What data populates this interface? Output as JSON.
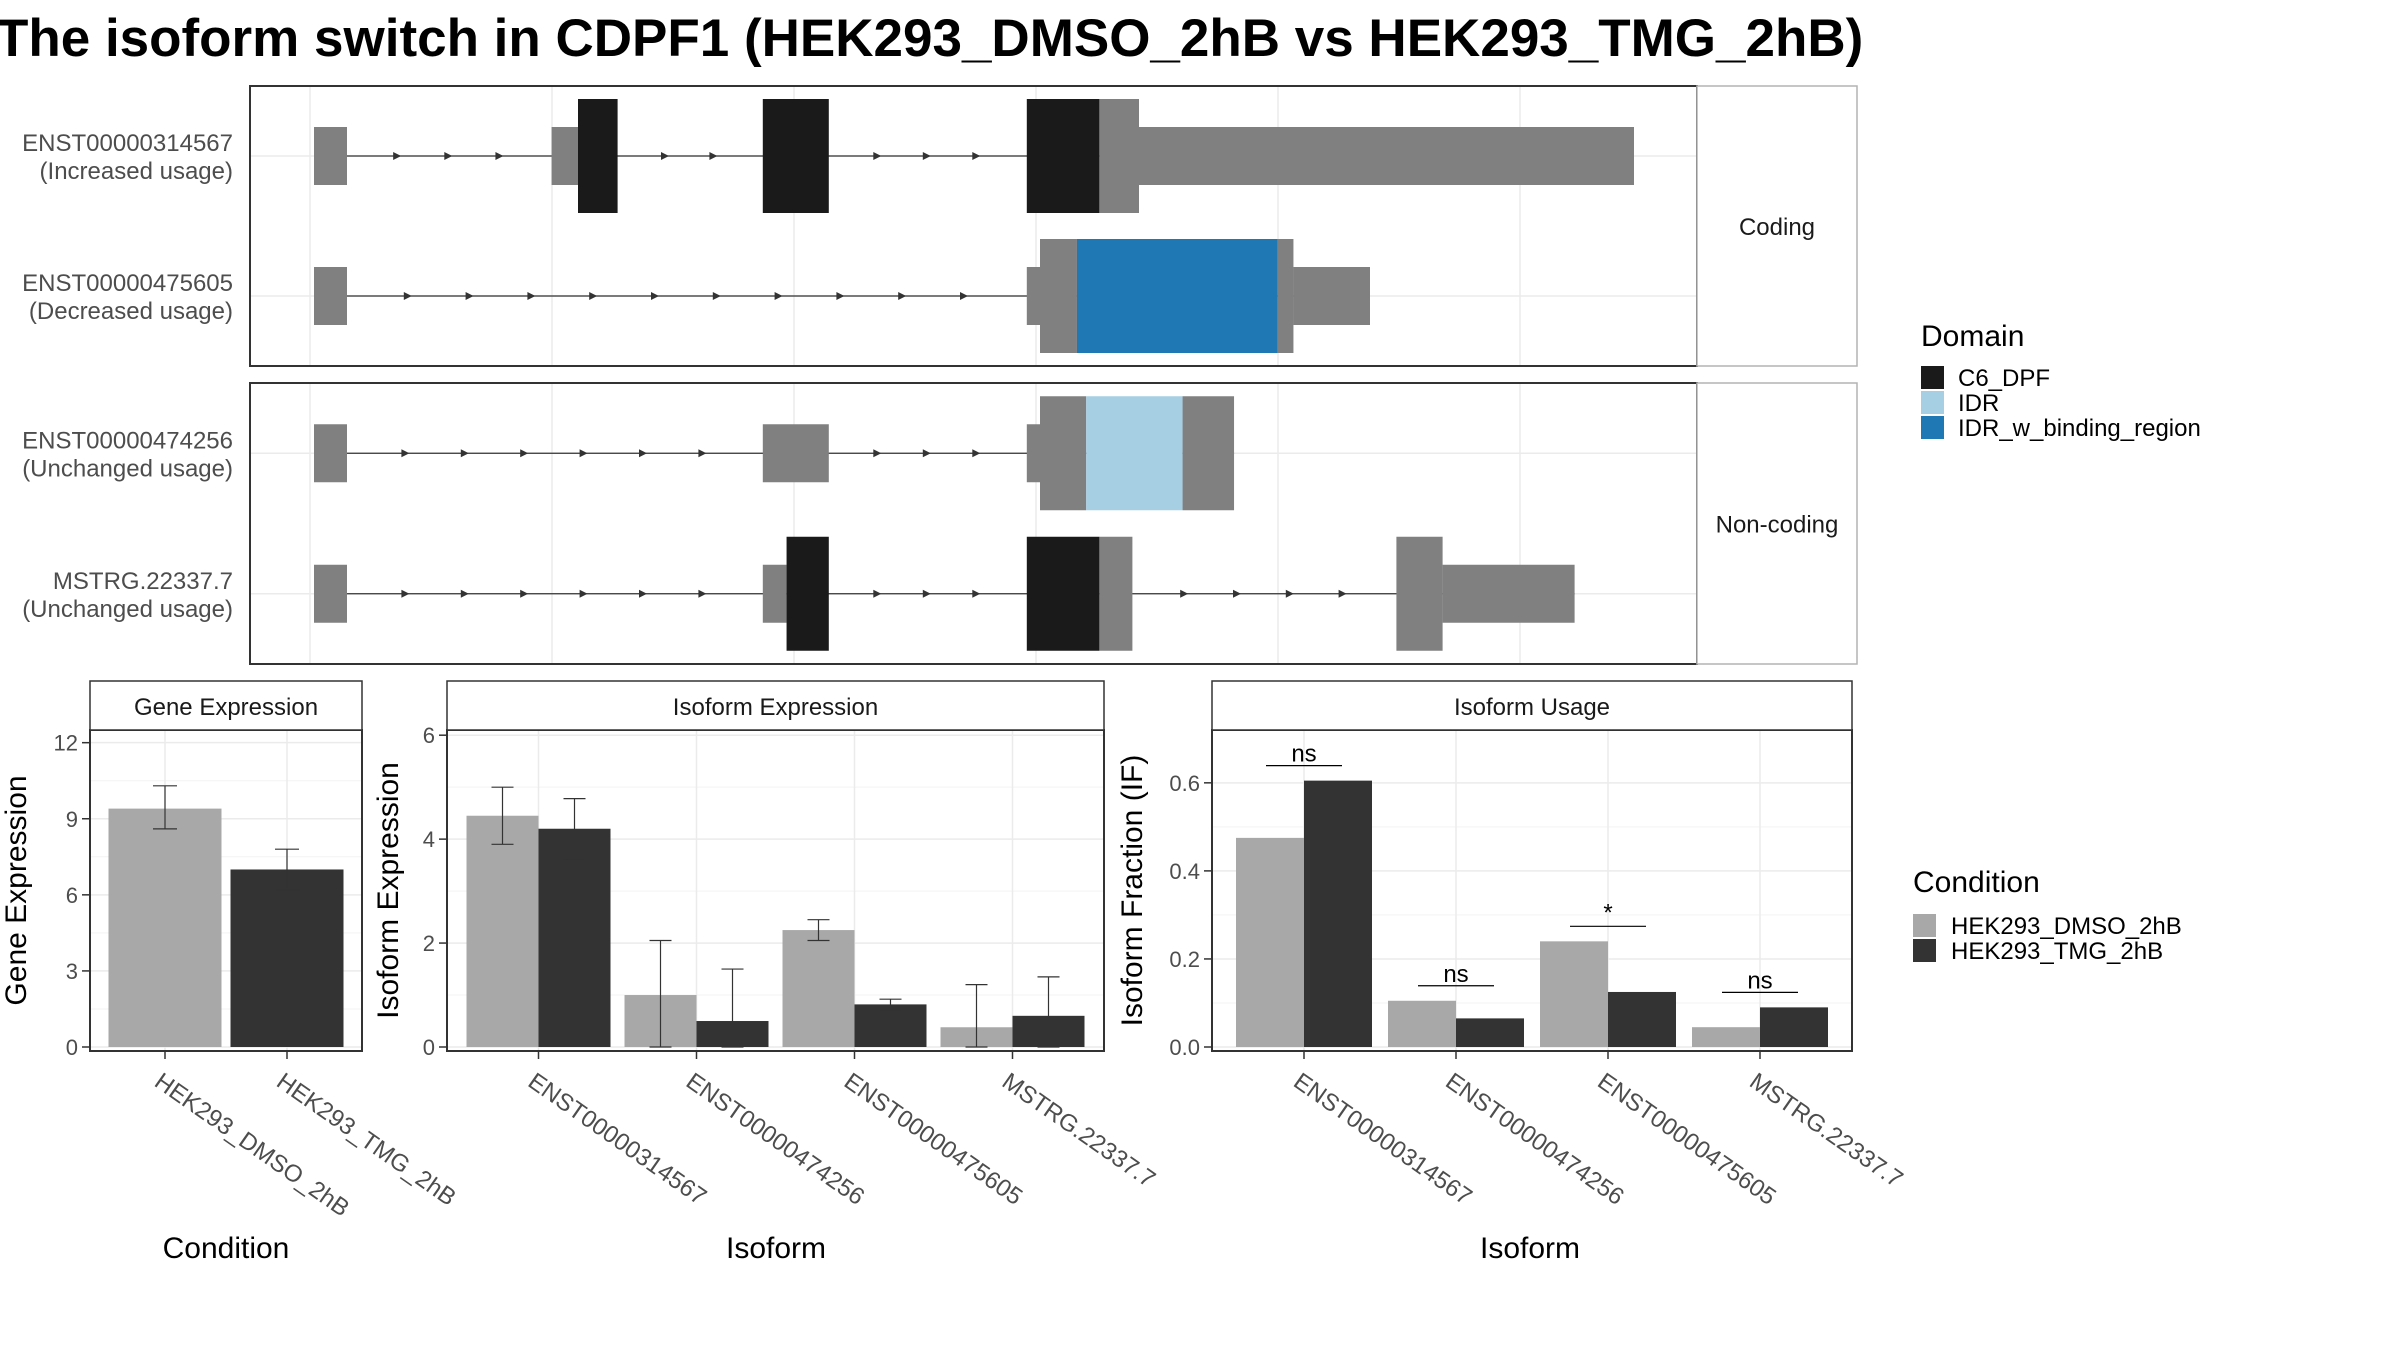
{
  "title": "The isoform switch in CDPF1 (HEK293_DMSO_2hB vs HEK293_TMG_2hB)",
  "colors": {
    "exon": "#808080",
    "C6_DPF": "#1a1a1a",
    "IDR": "#a6cfe4",
    "IDR_w_binding_region": "#1f78b4",
    "dmso": "#a8a8a8",
    "tmg": "#333333",
    "grid": "#ebebeb",
    "strip_bg": "#ffffff",
    "strip_border": "#b3b3b3"
  },
  "structure": {
    "panels": [
      {
        "strip": "Coding",
        "transcripts": [
          {
            "id": "ENST00000314567",
            "usage": "(Increased usage)",
            "segments": [
              {
                "start": 0.0,
                "end": 0.025,
                "kind": "utr"
              },
              {
                "start": 0.18,
                "end": 0.2,
                "kind": "utr"
              },
              {
                "start": 0.2,
                "end": 0.23,
                "kind": "C6_DPF"
              },
              {
                "start": 0.34,
                "end": 0.39,
                "kind": "C6_DPF"
              },
              {
                "start": 0.54,
                "end": 0.595,
                "kind": "C6_DPF"
              },
              {
                "start": 0.595,
                "end": 0.625,
                "kind": "cds"
              },
              {
                "start": 0.625,
                "end": 1.0,
                "kind": "utr"
              }
            ]
          },
          {
            "id": "ENST00000475605",
            "usage": "(Decreased usage)",
            "segments": [
              {
                "start": 0.0,
                "end": 0.025,
                "kind": "utr"
              },
              {
                "start": 0.54,
                "end": 0.55,
                "kind": "utr"
              },
              {
                "start": 0.55,
                "end": 0.578,
                "kind": "cds"
              },
              {
                "start": 0.578,
                "end": 0.73,
                "kind": "IDR_w_binding_region"
              },
              {
                "start": 0.73,
                "end": 0.742,
                "kind": "cds"
              },
              {
                "start": 0.742,
                "end": 0.8,
                "kind": "utr"
              }
            ]
          }
        ]
      },
      {
        "strip": "Non-coding",
        "transcripts": [
          {
            "id": "ENST00000474256",
            "usage": "(Unchanged usage)",
            "segments": [
              {
                "start": 0.0,
                "end": 0.025,
                "kind": "utr"
              },
              {
                "start": 0.34,
                "end": 0.39,
                "kind": "utr"
              },
              {
                "start": 0.54,
                "end": 0.55,
                "kind": "utr"
              },
              {
                "start": 0.55,
                "end": 0.585,
                "kind": "cds"
              },
              {
                "start": 0.585,
                "end": 0.658,
                "kind": "IDR"
              },
              {
                "start": 0.658,
                "end": 0.697,
                "kind": "cds"
              }
            ]
          },
          {
            "id": "MSTRG.22337.7",
            "usage": "(Unchanged usage)",
            "segments": [
              {
                "start": 0.0,
                "end": 0.025,
                "kind": "utr"
              },
              {
                "start": 0.34,
                "end": 0.358,
                "kind": "utr"
              },
              {
                "start": 0.358,
                "end": 0.39,
                "kind": "C6_DPF"
              },
              {
                "start": 0.54,
                "end": 0.595,
                "kind": "C6_DPF"
              },
              {
                "start": 0.595,
                "end": 0.62,
                "kind": "cds"
              },
              {
                "start": 0.82,
                "end": 0.855,
                "kind": "cds"
              },
              {
                "start": 0.855,
                "end": 0.955,
                "kind": "utr"
              }
            ]
          }
        ]
      }
    ]
  },
  "domain_legend": {
    "title": "Domain",
    "items": [
      {
        "label": "C6_DPF",
        "color_key": "C6_DPF"
      },
      {
        "label": "IDR",
        "color_key": "IDR"
      },
      {
        "label": "IDR_w_binding_region",
        "color_key": "IDR_w_binding_region"
      }
    ]
  },
  "condition_legend": {
    "title": "Condition",
    "items": [
      {
        "label": "HEK293_DMSO_2hB",
        "color_key": "dmso"
      },
      {
        "label": "HEK293_TMG_2hB",
        "color_key": "tmg"
      }
    ]
  },
  "chart_data": [
    {
      "type": "bar",
      "title": "Gene Expression",
      "xlabel": "Condition",
      "ylabel": "Gene Expression",
      "ylim": [
        0,
        12.5
      ],
      "yticks": [
        0,
        3,
        6,
        9,
        12
      ],
      "categories": [
        "HEK293_DMSO_2hB",
        "HEK293_TMG_2hB"
      ],
      "values": [
        9.4,
        7.0
      ],
      "error_low": [
        8.6,
        6.2
      ],
      "error_high": [
        10.3,
        7.8
      ]
    },
    {
      "type": "bar",
      "title": "Isoform Expression",
      "xlabel": "Isoform",
      "ylabel": "Isoform Expression",
      "ylim": [
        0,
        6.1
      ],
      "yticks": [
        0,
        2,
        4,
        6
      ],
      "categories": [
        "ENST00000314567",
        "ENST00000474256",
        "ENST00000475605",
        "MSTRG.22337.7"
      ],
      "series": [
        {
          "name": "HEK293_DMSO_2hB",
          "values": [
            4.45,
            1.0,
            2.25,
            0.38
          ],
          "error_low": [
            3.9,
            0.0,
            2.05,
            0.0
          ],
          "error_high": [
            5.0,
            2.05,
            2.45,
            1.2
          ]
        },
        {
          "name": "HEK293_TMG_2hB",
          "values": [
            4.2,
            0.5,
            0.82,
            0.6
          ],
          "error_low": [
            3.6,
            0.0,
            0.72,
            0.0
          ],
          "error_high": [
            4.78,
            1.5,
            0.92,
            1.35
          ]
        }
      ]
    },
    {
      "type": "bar",
      "title": "Isoform Usage",
      "xlabel": "Isoform",
      "ylabel": "Isoform Fraction (IF)",
      "ylim": [
        0,
        0.72
      ],
      "yticks": [
        0.0,
        0.2,
        0.4,
        0.6
      ],
      "ytick_labels": [
        "0.0",
        "0.2",
        "0.4",
        "0.6"
      ],
      "categories": [
        "ENST00000314567",
        "ENST00000474256",
        "ENST00000475605",
        "MSTRG.22337.7"
      ],
      "series": [
        {
          "name": "HEK293_DMSO_2hB",
          "values": [
            0.475,
            0.105,
            0.24,
            0.045
          ]
        },
        {
          "name": "HEK293_TMG_2hB",
          "values": [
            0.605,
            0.065,
            0.125,
            0.09
          ]
        }
      ],
      "significance": [
        "ns",
        "ns",
        "*",
        "ns"
      ]
    }
  ]
}
